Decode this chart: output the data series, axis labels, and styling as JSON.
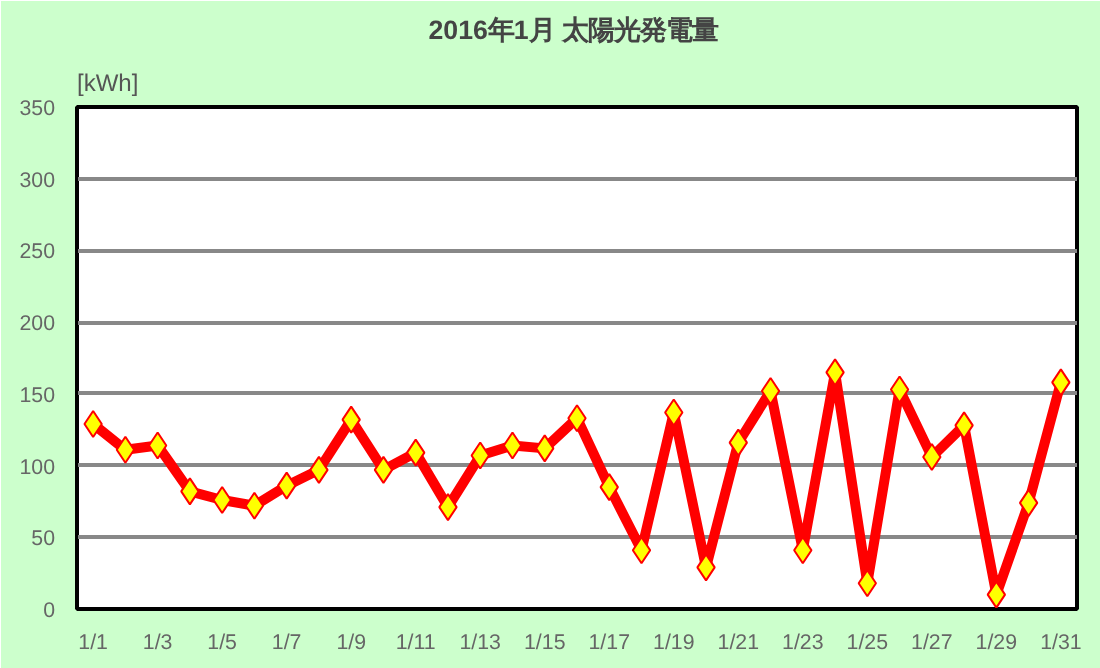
{
  "chart_data": {
    "type": "line",
    "title": "2016年1月  太陽光発電量",
    "ylabel": "[kWh]",
    "categories": [
      "1/1",
      null,
      "1/3",
      null,
      "1/5",
      null,
      "1/7",
      null,
      "1/9",
      null,
      "1/11",
      null,
      "1/13",
      null,
      "1/15",
      null,
      "1/17",
      null,
      "1/19",
      null,
      "1/21",
      null,
      "1/23",
      null,
      "1/25",
      null,
      "1/27",
      null,
      "1/29",
      null,
      "1/31"
    ],
    "series": [
      {
        "color": "#ff0000",
        "values": [
          129,
          111,
          114,
          82,
          76,
          72,
          86,
          97,
          132,
          97,
          109,
          71,
          107,
          114,
          112,
          133,
          85,
          41,
          137,
          29,
          116,
          152,
          41,
          165,
          18,
          153,
          106,
          128,
          10,
          74,
          158
        ]
      }
    ],
    "ylim": [
      0,
      350
    ],
    "yticks": [
      0,
      50,
      100,
      150,
      200,
      250,
      300,
      350
    ],
    "grid": "y",
    "marker": "diamond",
    "line_style": "solid"
  }
}
